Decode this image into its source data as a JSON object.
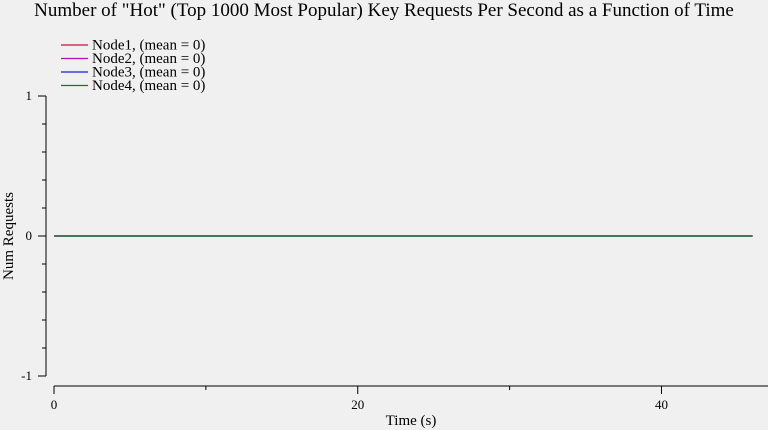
{
  "chart_data": {
    "type": "line",
    "title": "Number of \"Hot\" (Top 1000 Most Popular) Key Requests Per Second as a Function of Time",
    "xlabel": "Time (s)",
    "ylabel": "Num Requests",
    "xlim": [
      0,
      46
    ],
    "ylim": [
      -1,
      1
    ],
    "x_ticks": [
      0,
      20,
      40
    ],
    "x_minor_ticks": [
      10,
      30
    ],
    "y_ticks": [
      -1,
      0,
      1
    ],
    "y_minor_ticks": [
      -0.8,
      -0.6,
      -0.4,
      -0.2,
      0.2,
      0.4,
      0.6,
      0.8
    ],
    "grid": false,
    "legend_position": "top-left",
    "x": [
      0,
      46
    ],
    "series": [
      {
        "name": "Node1, (mean = 0)",
        "color": "#c8103c",
        "values": [
          0,
          0
        ]
      },
      {
        "name": "Node2, (mean = 0)",
        "color": "#b010b8",
        "values": [
          0,
          0
        ]
      },
      {
        "name": "Node3, (mean = 0)",
        "color": "#1020d8",
        "values": [
          0,
          0
        ]
      },
      {
        "name": "Node4, (mean = 0)",
        "color": "#107818",
        "values": [
          0,
          0
        ]
      }
    ]
  }
}
